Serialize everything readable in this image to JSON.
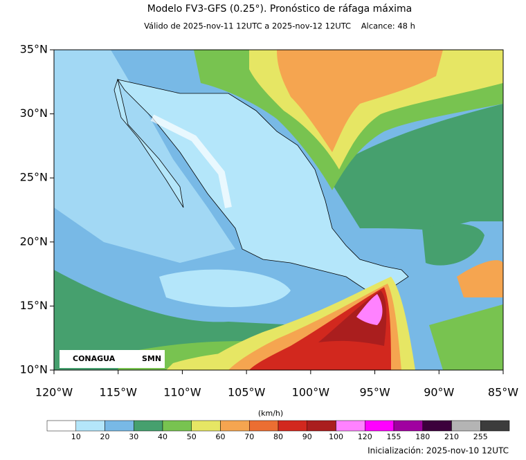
{
  "map": {
    "title": "Modelo FV3-GFS (0.25°). Pronóstico de ráfaga máxima",
    "subtitle": "Válido de 2025-nov-11 12UTC a 2025-nov-12 12UTC    Alcance: 48 h",
    "lat_ticks": [
      {
        "value": 35,
        "label": "35°N"
      },
      {
        "value": 30,
        "label": "30°N"
      },
      {
        "value": 25,
        "label": "25°N"
      },
      {
        "value": 20,
        "label": "20°N"
      },
      {
        "value": 15,
        "label": "15°N"
      },
      {
        "value": 10,
        "label": "10°N"
      }
    ],
    "lon_ticks": [
      {
        "value": -120,
        "label": "120°W"
      },
      {
        "value": -115,
        "label": "115°W"
      },
      {
        "value": -110,
        "label": "110°W"
      },
      {
        "value": -105,
        "label": "105°W"
      },
      {
        "value": -100,
        "label": "100°W"
      },
      {
        "value": -95,
        "label": "95°W"
      },
      {
        "value": -90,
        "label": "90°W"
      },
      {
        "value": -85,
        "label": "85°W"
      }
    ],
    "colorbar": {
      "unit": "(km/h)",
      "labels": [
        10,
        20,
        30,
        40,
        50,
        60,
        70,
        80,
        90,
        100,
        120,
        155,
        180,
        210,
        255
      ],
      "colors": [
        "#ffffff",
        "#b4e6fa",
        "#78b9e6",
        "#46a06e",
        "#78c350",
        "#e6e664",
        "#f5a550",
        "#eb6e32",
        "#d2281e",
        "#aa1e1e",
        "#ff82ff",
        "#ff00ff",
        "#a000a0",
        "#3c003c",
        "#b4b4b4",
        "#3c3c3c"
      ]
    },
    "logos": [
      "CONAGUA",
      "SMN"
    ],
    "footer": "Inicialización: 2025-nov-10 12UTC"
  }
}
